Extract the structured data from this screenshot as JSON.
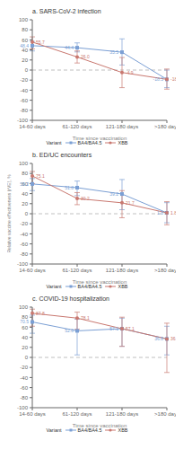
{
  "chart_data": [
    {
      "type": "line",
      "title": "a. SARS-CoV-2 infection",
      "categories": [
        "14-60 days",
        "61-120 days",
        "121-180 days",
        ">180 days"
      ],
      "x_label": "Time since vaccination",
      "series": [
        {
          "name": "BA4/BA4.5",
          "color": "#7b9fd4",
          "marker": "square",
          "line_style": "solid",
          "values": [
            48.4,
            44.4,
            35.5,
            -18.5
          ],
          "value_labels": [
            "48.4",
            "44.4",
            "35.5",
            "-18.5"
          ],
          "ci_lo": [
            38,
            36,
            10,
            -35
          ],
          "ci_hi": [
            57,
            54,
            62,
            0
          ]
        },
        {
          "name": "XBB",
          "color": "#c97870",
          "marker": "circle",
          "line_style": "solid",
          "values": [
            55.7,
            26.0,
            -4.9,
            -18.5
          ],
          "value_labels": [
            "55.7",
            "26.0",
            "-4.9",
            "-18.5"
          ],
          "ci_lo": [
            42,
            14,
            -35,
            -38
          ],
          "ci_hi": [
            66,
            38,
            25,
            2
          ]
        }
      ],
      "ylim": [
        -100,
        100
      ],
      "yticks": [
        -100,
        -80,
        -60,
        -40,
        -20,
        0,
        20,
        40,
        60,
        80,
        100
      ],
      "data_labels": true,
      "grid": false,
      "legend": "bottom",
      "legend_title": "Variant",
      "hlines": [
        {
          "y": 0,
          "line_style": "dashed",
          "color": "#b0b0b0"
        }
      ]
    },
    {
      "type": "line",
      "title": "b. ED/UC encounters",
      "categories": [
        "14-60 days",
        "61-120 days",
        "121-180 days",
        ">180 days"
      ],
      "x_label": "Time since vaccination",
      "y_label": "Relative vaccine effectiveness (rVE), %",
      "series": [
        {
          "name": "BA4/BA4.5",
          "color": "#7b9fd4",
          "marker": "square",
          "line_style": "solid",
          "values": [
            59.2,
            51.8,
            39.2,
            1.8
          ],
          "value_labels": [
            "59.2",
            "51.8",
            "39.2",
            "1.8"
          ],
          "ci_lo": [
            46,
            36,
            8,
            -18
          ],
          "ci_hi": [
            70,
            65,
            68,
            22
          ]
        },
        {
          "name": "XBB",
          "color": "#c97870",
          "marker": "circle",
          "line_style": "solid",
          "values": [
            75.1,
            30.2,
            21.7,
            1.8
          ],
          "value_labels": [
            "75.1",
            "30.2",
            "21.7",
            "1.8"
          ],
          "ci_lo": [
            60,
            18,
            -8,
            -22
          ],
          "ci_hi": [
            84,
            42,
            46,
            24
          ]
        }
      ],
      "ylim": [
        -100,
        100
      ],
      "yticks": [
        -100,
        -80,
        -60,
        -40,
        -20,
        0,
        20,
        40,
        60,
        80,
        100
      ],
      "data_labels": true,
      "grid": false,
      "legend": "bottom",
      "legend_title": "Variant",
      "hlines": [
        {
          "y": 0,
          "line_style": "dashed",
          "color": "#b0b0b0"
        }
      ]
    },
    {
      "type": "line",
      "title": "c. COVID-19 hospitalization",
      "categories": [
        "14-60 days",
        "61-120 days",
        "121-180 days",
        ">180 days"
      ],
      "x_label": "Time since vaccination",
      "series": [
        {
          "name": "BA4/BA4.5",
          "color": "#7b9fd4",
          "marker": "square",
          "line_style": "solid",
          "values": [
            70.5,
            52.8,
            57.1,
            36.8
          ],
          "value_labels": [
            "70.5",
            "52.8",
            "57.1",
            "36.8"
          ],
          "ci_lo": [
            48,
            5,
            22,
            5
          ],
          "ci_hi": [
            84,
            76,
            78,
            62
          ]
        },
        {
          "name": "XBB",
          "color": "#c97870",
          "marker": "circle",
          "line_style": "solid",
          "values": [
            87.8,
            78.1,
            57.1,
            36.8
          ],
          "value_labels": [
            "87.8",
            "78.1",
            "57.1",
            "36.8"
          ],
          "ci_lo": [
            62,
            56,
            22,
            -30
          ],
          "ci_hi": [
            96,
            90,
            80,
            68
          ]
        }
      ],
      "ylim": [
        -100,
        100
      ],
      "yticks": [
        -100,
        -80,
        -60,
        -40,
        -20,
        0,
        20,
        40,
        60,
        80,
        100
      ],
      "data_labels": true,
      "grid": false,
      "legend": "bottom",
      "legend_title": "Variant",
      "hlines": [
        {
          "y": 0,
          "line_style": "dashed",
          "color": "#b0b0b0"
        }
      ]
    }
  ]
}
